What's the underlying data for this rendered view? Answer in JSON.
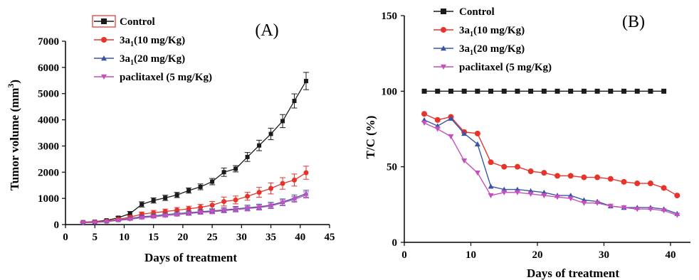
{
  "colors": {
    "control": "#1a1a1a",
    "dose10": "#e8332b",
    "dose20": "#3a55a6",
    "paclitaxel": "#c64fbd",
    "legend_box": "#e03030"
  },
  "legend_labels": [
    {
      "key": "control",
      "main": "Control",
      "sub": "",
      "rest": ""
    },
    {
      "key": "dose10",
      "main": "3a",
      "sub": "1",
      "rest": "(10 mg/Kg)"
    },
    {
      "key": "dose20",
      "main": "3a",
      "sub": "1",
      "rest": "(20 mg/Kg)"
    },
    {
      "key": "paclitaxel",
      "main": "paclitaxel  (5 mg/Kg)",
      "sub": "",
      "rest": ""
    }
  ],
  "chart_data": [
    {
      "type": "line",
      "panel_label": "(A)",
      "xlabel": "Days of treatment",
      "ylabel": "Tumor volume (mm",
      "ylabel_sup": "3",
      "ylabel_close": ")",
      "xlim": [
        0,
        45
      ],
      "ylim": [
        0,
        7000
      ],
      "xticks": [
        0,
        5,
        10,
        15,
        20,
        25,
        30,
        35,
        40,
        45
      ],
      "yticks": [
        0,
        1000,
        2000,
        3000,
        4000,
        5000,
        6000,
        7000
      ],
      "x": [
        3,
        5,
        7,
        9,
        11,
        13,
        15,
        17,
        19,
        21,
        23,
        25,
        27,
        29,
        31,
        33,
        35,
        37,
        39,
        41
      ],
      "series": [
        {
          "key": "control",
          "marker": "square",
          "values": [
            90,
            110,
            160,
            260,
            420,
            770,
            920,
            1020,
            1130,
            1300,
            1440,
            1640,
            2000,
            2130,
            2580,
            3020,
            3460,
            3950,
            4720,
            5480
          ],
          "errors": [
            20,
            25,
            30,
            50,
            80,
            100,
            100,
            100,
            100,
            100,
            110,
            120,
            160,
            120,
            170,
            200,
            220,
            250,
            270,
            330
          ]
        },
        {
          "key": "dose10",
          "marker": "circle",
          "values": [
            80,
            100,
            130,
            200,
            280,
            400,
            450,
            500,
            550,
            600,
            660,
            740,
            880,
            940,
            1080,
            1230,
            1380,
            1570,
            1700,
            1980
          ],
          "errors": [
            15,
            20,
            25,
            40,
            60,
            80,
            90,
            90,
            100,
            100,
            110,
            140,
            170,
            150,
            150,
            190,
            210,
            220,
            230,
            250
          ]
        },
        {
          "key": "dose20",
          "marker": "triangle-up",
          "values": [
            75,
            85,
            120,
            170,
            230,
            300,
            330,
            380,
            420,
            450,
            490,
            520,
            560,
            600,
            640,
            680,
            740,
            860,
            1010,
            1180
          ],
          "errors": [
            10,
            15,
            20,
            30,
            40,
            50,
            60,
            60,
            70,
            70,
            80,
            80,
            90,
            90,
            100,
            100,
            110,
            120,
            120,
            130
          ]
        },
        {
          "key": "paclitaxel",
          "marker": "triangle-down",
          "values": [
            70,
            80,
            110,
            160,
            200,
            260,
            300,
            340,
            380,
            420,
            460,
            490,
            530,
            570,
            610,
            650,
            710,
            830,
            960,
            1130
          ],
          "errors": [
            10,
            15,
            20,
            30,
            40,
            50,
            50,
            60,
            60,
            70,
            70,
            80,
            80,
            90,
            90,
            100,
            100,
            110,
            110,
            120
          ]
        }
      ]
    },
    {
      "type": "line",
      "panel_label": "(B)",
      "xlabel": "Days of treatment",
      "ylabel": "T/C (%)",
      "xlim": [
        0,
        43
      ],
      "ylim": [
        0,
        150
      ],
      "xticks": [
        0,
        10,
        20,
        30,
        40
      ],
      "yticks": [
        0,
        50,
        100,
        150
      ],
      "series": [
        {
          "key": "control",
          "marker": "square",
          "x": [
            3,
            5,
            7,
            9,
            11,
            13,
            15,
            17,
            19,
            21,
            23,
            25,
            27,
            29,
            31,
            33,
            35,
            37,
            39
          ],
          "values": [
            100,
            100,
            100,
            100,
            100,
            100,
            100,
            100,
            100,
            100,
            100,
            100,
            100,
            100,
            100,
            100,
            100,
            100,
            100
          ]
        },
        {
          "key": "dose10",
          "marker": "circle",
          "x": [
            3,
            5,
            7,
            9,
            11,
            13,
            15,
            17,
            19,
            21,
            23,
            25,
            27,
            29,
            31,
            33,
            35,
            37,
            39,
            41
          ],
          "values": [
            85,
            81,
            83,
            73,
            72,
            53,
            50,
            50,
            47,
            46,
            44,
            44,
            43,
            43,
            42,
            40,
            39,
            39,
            36,
            31
          ]
        },
        {
          "key": "dose20",
          "marker": "triangle-up",
          "x": [
            3,
            5,
            7,
            9,
            11,
            13,
            15,
            17,
            19,
            21,
            23,
            25,
            27,
            29,
            31,
            33,
            35,
            37,
            39,
            41
          ],
          "values": [
            81,
            77,
            82,
            72,
            65,
            37,
            35,
            35,
            34,
            33,
            31,
            31,
            28,
            27,
            24,
            23,
            23,
            23,
            22,
            19
          ]
        },
        {
          "key": "paclitaxel",
          "marker": "triangle-down",
          "x": [
            3,
            5,
            7,
            9,
            11,
            13,
            15,
            17,
            19,
            21,
            23,
            25,
            27,
            29,
            31,
            33,
            35,
            37,
            39,
            41
          ],
          "values": [
            79,
            75,
            70,
            54,
            46,
            31,
            33,
            33,
            32,
            31,
            30,
            29,
            26,
            26,
            24,
            23,
            22,
            22,
            21,
            18
          ]
        }
      ]
    }
  ]
}
